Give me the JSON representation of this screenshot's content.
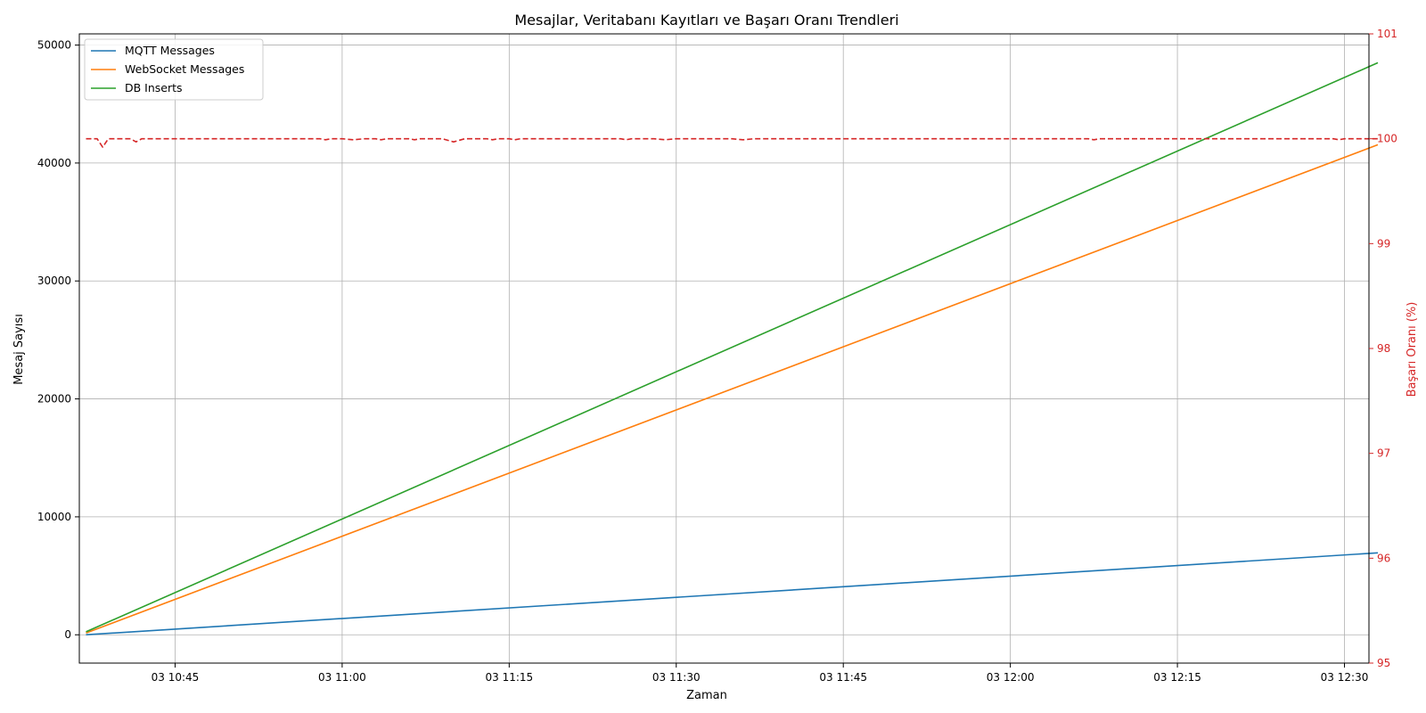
{
  "chart_data": {
    "type": "line",
    "title": "Mesajlar, Veritabanı Kayıtları ve Başarı Oranı Trendleri",
    "xlabel": "Zaman",
    "ylabel": "Mesaj Sayısı",
    "ylabel_right": "Başarı Oranı (%)",
    "x_range": [
      "10:36:24",
      "12:32:12"
    ],
    "x_ticks": [
      {
        "t": "10:45",
        "label": "03 10:45"
      },
      {
        "t": "11:00",
        "label": "03 11:00"
      },
      {
        "t": "11:15",
        "label": "03 11:15"
      },
      {
        "t": "11:30",
        "label": "03 11:30"
      },
      {
        "t": "11:45",
        "label": "03 11:45"
      },
      {
        "t": "12:00",
        "label": "03 12:00"
      },
      {
        "t": "12:15",
        "label": "03 12:15"
      },
      {
        "t": "12:30",
        "label": "03 12:30"
      }
    ],
    "ylim": [
      -2400,
      50950
    ],
    "y_ticks": [
      0,
      10000,
      20000,
      30000,
      40000,
      50000
    ],
    "ylim_right": [
      95,
      101
    ],
    "y_ticks_right": [
      95,
      96,
      97,
      98,
      99,
      100,
      101
    ],
    "grid": true,
    "legend": "top-left",
    "series": [
      {
        "name": "MQTT Messages",
        "color": "#1f77b4",
        "axis": "left",
        "style": "solid",
        "points": [
          [
            "10:37",
            0
          ],
          [
            "12:33",
            6950
          ]
        ]
      },
      {
        "name": "WebSocket Messages",
        "color": "#ff7f0e",
        "axis": "left",
        "style": "solid",
        "points": [
          [
            "10:37",
            150
          ],
          [
            "12:33",
            41550
          ]
        ]
      },
      {
        "name": "DB Inserts",
        "color": "#2ca02c",
        "axis": "left",
        "style": "solid",
        "points": [
          [
            "10:37",
            250
          ],
          [
            "12:33",
            48500
          ]
        ]
      },
      {
        "name": "",
        "color": "#d62728",
        "axis": "right",
        "style": "dashed",
        "points": [
          [
            "10:37",
            100
          ],
          [
            "10:38",
            100
          ],
          [
            "10:38:30",
            99.92
          ],
          [
            "10:39",
            100
          ],
          [
            "10:41",
            100
          ],
          [
            "10:41:30",
            99.97
          ],
          [
            "10:42",
            100
          ],
          [
            "10:58",
            100
          ],
          [
            "10:58:30",
            99.99
          ],
          [
            "10:59",
            100
          ],
          [
            "11:00",
            100
          ],
          [
            "11:01",
            99.99
          ],
          [
            "11:02",
            100
          ],
          [
            "11:03",
            100
          ],
          [
            "11:03:30",
            99.99
          ],
          [
            "11:04",
            100
          ],
          [
            "11:06",
            100
          ],
          [
            "11:06:30",
            99.99
          ],
          [
            "11:07",
            100
          ],
          [
            "11:09",
            100
          ],
          [
            "11:10",
            99.97
          ],
          [
            "11:11",
            100
          ],
          [
            "11:13",
            100
          ],
          [
            "11:13:30",
            99.99
          ],
          [
            "11:14",
            100
          ],
          [
            "11:15",
            100
          ],
          [
            "11:15:30",
            99.99
          ],
          [
            "11:16",
            100
          ],
          [
            "11:25",
            100
          ],
          [
            "11:25:30",
            99.99
          ],
          [
            "11:26",
            100
          ],
          [
            "11:28",
            100
          ],
          [
            "11:29",
            99.99
          ],
          [
            "11:30",
            100
          ],
          [
            "11:35",
            100
          ],
          [
            "11:36",
            99.99
          ],
          [
            "11:37",
            100
          ],
          [
            "12:07",
            100
          ],
          [
            "12:07:30",
            99.99
          ],
          [
            "12:08",
            100
          ],
          [
            "12:29",
            100
          ],
          [
            "12:29:30",
            99.99
          ],
          [
            "12:30",
            100
          ],
          [
            "12:33",
            100
          ]
        ]
      }
    ]
  }
}
